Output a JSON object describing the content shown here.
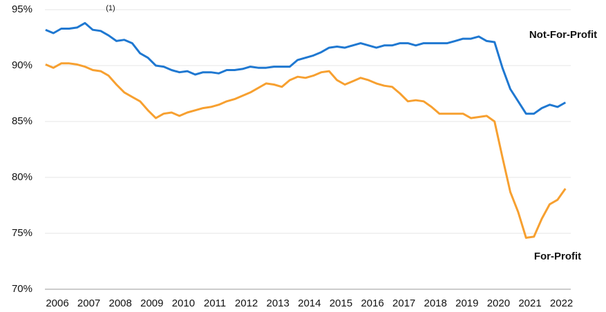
{
  "chart_data": {
    "type": "line",
    "annotations": [
      "(1)"
    ],
    "x": [
      2006.125,
      2006.375,
      2006.625,
      2006.875,
      2007.125,
      2007.375,
      2007.625,
      2007.875,
      2008.125,
      2008.375,
      2008.625,
      2008.875,
      2009.125,
      2009.375,
      2009.625,
      2009.875,
      2010.125,
      2010.375,
      2010.625,
      2010.875,
      2011.125,
      2011.375,
      2011.625,
      2011.875,
      2012.125,
      2012.375,
      2012.625,
      2012.875,
      2013.125,
      2013.375,
      2013.625,
      2013.875,
      2014.125,
      2014.375,
      2014.625,
      2014.875,
      2015.125,
      2015.375,
      2015.625,
      2015.875,
      2016.125,
      2016.375,
      2016.625,
      2016.875,
      2017.125,
      2017.375,
      2017.625,
      2017.875,
      2018.125,
      2018.375,
      2018.625,
      2018.875,
      2019.125,
      2019.375,
      2019.625,
      2019.875,
      2020.125,
      2020.375,
      2020.625,
      2020.875,
      2021.125,
      2021.375,
      2021.625,
      2021.875,
      2022.125,
      2022.375,
      2022.625
    ],
    "series": [
      {
        "name": "Not-For-Profit",
        "color": "#1f78d1",
        "values": [
          93.2,
          92.9,
          93.3,
          93.3,
          93.4,
          93.8,
          93.2,
          93.1,
          92.7,
          92.2,
          92.3,
          92.0,
          91.1,
          90.7,
          90.0,
          89.9,
          89.6,
          89.4,
          89.5,
          89.2,
          89.4,
          89.4,
          89.3,
          89.6,
          89.6,
          89.7,
          89.9,
          89.8,
          89.8,
          89.9,
          89.9,
          89.9,
          90.5,
          90.7,
          90.9,
          91.2,
          91.6,
          91.7,
          91.6,
          91.8,
          92.0,
          91.8,
          91.6,
          91.8,
          91.8,
          92.0,
          92.0,
          91.8,
          92.0,
          92.0,
          92.0,
          92.0,
          92.2,
          92.4,
          92.4,
          92.6,
          92.2,
          92.1,
          89.8,
          87.9,
          86.8,
          85.7,
          85.7,
          86.2,
          86.5,
          86.3,
          86.7
        ]
      },
      {
        "name": "For-Profit",
        "color": "#f7a030",
        "values": [
          90.1,
          89.8,
          90.2,
          90.2,
          90.1,
          89.9,
          89.6,
          89.5,
          89.1,
          88.3,
          87.6,
          87.2,
          86.8,
          86.0,
          85.3,
          85.7,
          85.8,
          85.5,
          85.8,
          86.0,
          86.2,
          86.3,
          86.5,
          86.8,
          87.0,
          87.3,
          87.6,
          88.0,
          88.4,
          88.3,
          88.1,
          88.7,
          89.0,
          88.9,
          89.1,
          89.4,
          89.5,
          88.7,
          88.3,
          88.6,
          88.9,
          88.7,
          88.4,
          88.2,
          88.1,
          87.5,
          86.8,
          86.9,
          86.8,
          86.3,
          85.7,
          85.7,
          85.7,
          85.7,
          85.3,
          85.4,
          85.5,
          85.0,
          81.8,
          78.7,
          76.9,
          74.6,
          74.7,
          76.3,
          77.6,
          78.0,
          79.0
        ]
      }
    ],
    "xlim": [
      2006,
      2023
    ],
    "xticks": [
      2006,
      2007,
      2008,
      2009,
      2010,
      2011,
      2012,
      2013,
      2014,
      2015,
      2016,
      2017,
      2018,
      2019,
      2020,
      2021,
      2022
    ],
    "ylim": [
      70,
      95
    ],
    "yticks": [
      {
        "value": 70,
        "label": "70%"
      },
      {
        "value": 75,
        "label": "75%"
      },
      {
        "value": 80,
        "label": "80%"
      },
      {
        "value": 85,
        "label": "85%"
      },
      {
        "value": 90,
        "label": "90%"
      },
      {
        "value": 95,
        "label": "95%"
      }
    ],
    "grid": true
  }
}
